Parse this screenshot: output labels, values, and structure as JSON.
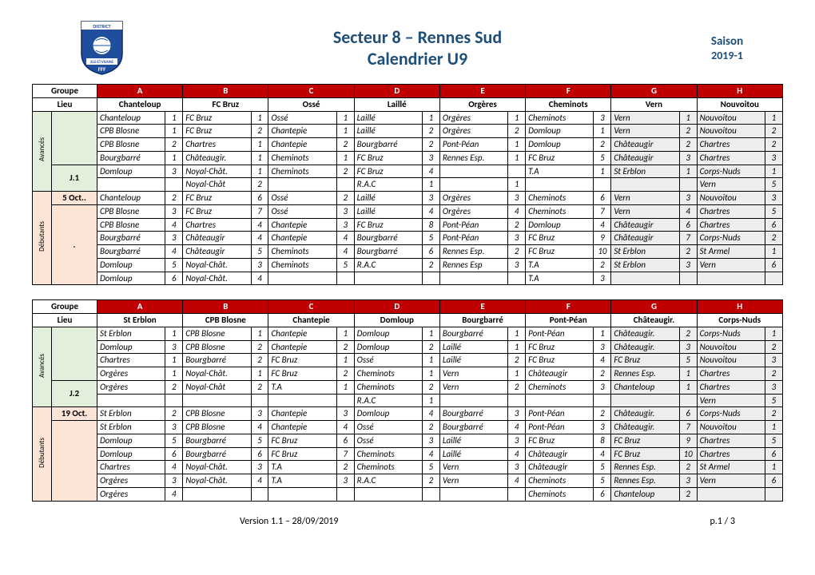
{
  "title1": "Secteur 8 – Rennes Sud",
  "title2": "Calendrier U9",
  "season1": "Saison",
  "season2": "2019-1",
  "groupeLabel": "Groupe",
  "lieuLabel": "Lieu",
  "groups": [
    "A",
    "B",
    "C",
    "D",
    "E",
    "F",
    "G",
    "H"
  ],
  "avancesLabel": "Avancés",
  "debutantsLabel": "Débutants",
  "block1": {
    "lieux": [
      "Chanteloup",
      "FC Bruz",
      "Ossé",
      "Laillé",
      "Orgères",
      "Cheminots",
      "Vern",
      "Nouvoitou"
    ],
    "j": "J.1",
    "date": "5 Oct..",
    "dateSub": ".",
    "adv": [
      [
        [
          "Chanteloup",
          "1"
        ],
        [
          "FC Bruz",
          "1"
        ],
        [
          "Ossé",
          "1"
        ],
        [
          "Laillé",
          "1"
        ],
        [
          "Orgères",
          "1"
        ],
        [
          "Cheminots",
          "3"
        ],
        [
          "Vern",
          "1"
        ],
        [
          "Nouvoitou",
          "1"
        ]
      ],
      [
        [
          "CPB Blosne",
          "1"
        ],
        [
          "FC Bruz",
          "2"
        ],
        [
          "Chantepie",
          "1"
        ],
        [
          "Laillé",
          "2"
        ],
        [
          "Orgères",
          "2"
        ],
        [
          "Domloup",
          "1"
        ],
        [
          "Vern",
          "2"
        ],
        [
          "Nouvoitou",
          "2"
        ]
      ],
      [
        [
          "CPB Blosne",
          "2"
        ],
        [
          "Chartres",
          "1"
        ],
        [
          "Chantepie",
          "2"
        ],
        [
          "Bourgbarré",
          "2"
        ],
        [
          "Pont-Péan",
          "1"
        ],
        [
          "Domloup",
          "2"
        ],
        [
          "Châteaugir",
          "2"
        ],
        [
          "Chartres",
          "2"
        ]
      ],
      [
        [
          "Bourgbarré",
          "1"
        ],
        [
          "Châteaugir.",
          "1"
        ],
        [
          "Cheminots",
          "1"
        ],
        [
          "FC Bruz",
          "3"
        ],
        [
          "Rennes Esp.",
          "1"
        ],
        [
          "FC Bruz",
          "5"
        ],
        [
          "Châteaugir",
          "3"
        ],
        [
          "Chartres",
          "3"
        ]
      ],
      [
        [
          "Domloup",
          "3"
        ],
        [
          "Noyal-Chât.",
          "1"
        ],
        [
          "Cheminots",
          "2"
        ],
        [
          "FC Bruz",
          "4"
        ],
        [
          "",
          ""
        ],
        [
          "T.A",
          "1"
        ],
        [
          "St Erblon",
          "1"
        ],
        [
          "Corps-Nuds",
          "1"
        ]
      ],
      [
        [
          "",
          ""
        ],
        [
          "Noyal-Chât",
          "2"
        ],
        [
          "",
          ""
        ],
        [
          "R.A.C",
          "1"
        ],
        [
          "",
          "1"
        ],
        [
          "",
          ""
        ],
        [
          "",
          ""
        ],
        [
          "Vern",
          "5"
        ]
      ]
    ],
    "deb": [
      [
        [
          "Chanteloup",
          "2"
        ],
        [
          "FC Bruz",
          "6"
        ],
        [
          "Ossé",
          "2"
        ],
        [
          "Laillé",
          "3"
        ],
        [
          "Orgères",
          "3"
        ],
        [
          "Cheminots",
          "6"
        ],
        [
          "Vern",
          "3"
        ],
        [
          "Nouvoitou",
          "3"
        ]
      ],
      [
        [
          "CPB Blosne",
          "3"
        ],
        [
          "FC Bruz",
          "7"
        ],
        [
          "Ossé",
          "3"
        ],
        [
          "Laillé",
          "4"
        ],
        [
          "Orgères",
          "4"
        ],
        [
          "Cheminots",
          "7"
        ],
        [
          "Vern",
          "4"
        ],
        [
          "Chartres",
          "5"
        ]
      ],
      [
        [
          "CPB Blosne",
          "4"
        ],
        [
          "Chartres",
          "4"
        ],
        [
          "Chantepie",
          "3"
        ],
        [
          "FC Bruz",
          "8"
        ],
        [
          "Pont-Péan",
          "2"
        ],
        [
          "Domloup",
          "4"
        ],
        [
          "Châteaugir",
          "6"
        ],
        [
          "Chartres",
          "6"
        ]
      ],
      [
        [
          "Bourgbarré",
          "3"
        ],
        [
          "Châteaugir",
          "4"
        ],
        [
          "Chantepie",
          "4"
        ],
        [
          "Bourgbarré",
          "5"
        ],
        [
          "Pont-Péan",
          "3"
        ],
        [
          "FC Bruz",
          "9"
        ],
        [
          "Châteaugir",
          "7"
        ],
        [
          "Corps-Nuds",
          "2"
        ]
      ],
      [
        [
          "Bourgbarré",
          "4"
        ],
        [
          "Châteaugir",
          "5"
        ],
        [
          "Cheminots",
          "4"
        ],
        [
          "Bourgbarré",
          "6"
        ],
        [
          "Rennes Esp.",
          "2"
        ],
        [
          "FC Bruz",
          "10"
        ],
        [
          "St Erblon",
          "2"
        ],
        [
          "St Armel",
          "1"
        ]
      ],
      [
        [
          "Domloup",
          "5"
        ],
        [
          "Noyal-Chât.",
          "3"
        ],
        [
          "Cheminots",
          "5"
        ],
        [
          "R.A.C",
          "2"
        ],
        [
          "Rennes Esp",
          "3"
        ],
        [
          "T.A",
          "2"
        ],
        [
          "St Erblon",
          "3"
        ],
        [
          "Vern",
          "6"
        ]
      ],
      [
        [
          "Domloup",
          "6"
        ],
        [
          "Noyal-Chât.",
          "4"
        ],
        [
          "",
          ""
        ],
        [
          "",
          ""
        ],
        [
          "",
          ""
        ],
        [
          "T.A",
          "3"
        ],
        [
          "",
          ""
        ],
        [
          "",
          ""
        ]
      ]
    ]
  },
  "block2": {
    "lieux": [
      "St Erblon",
      "CPB Blosne",
      "Chantepie",
      "Domloup",
      "Bourgbarré",
      "Pont-Péan",
      "Châteaugir.",
      "Corps-Nuds"
    ],
    "j": "J.2",
    "date": "19 Oct.",
    "adv": [
      [
        [
          "St Erblon",
          "1"
        ],
        [
          "CPB Blosne",
          "1"
        ],
        [
          "Chantepie",
          "1"
        ],
        [
          "Domloup",
          "1"
        ],
        [
          "Bourgbarré",
          "1"
        ],
        [
          "Pont-Péan",
          "1"
        ],
        [
          "Châteaugir.",
          "2"
        ],
        [
          "Corps-Nuds",
          "1"
        ]
      ],
      [
        [
          "Domloup",
          "3"
        ],
        [
          "CPB Blosne",
          "2"
        ],
        [
          "Chantepie",
          "2"
        ],
        [
          "Domloup",
          "2"
        ],
        [
          "Laillé",
          "1"
        ],
        [
          "FC Bruz",
          "3"
        ],
        [
          "Châteaugir.",
          "3"
        ],
        [
          "Nouvoitou",
          "2"
        ]
      ],
      [
        [
          "Chartres",
          "1"
        ],
        [
          "Bourgbarré",
          "2"
        ],
        [
          "FC Bruz",
          "1"
        ],
        [
          "Ossé",
          "1"
        ],
        [
          "Laillé",
          "2"
        ],
        [
          "FC Bruz",
          "4"
        ],
        [
          "FC Bruz",
          "5"
        ],
        [
          "Nouvoitou",
          "3"
        ]
      ],
      [
        [
          "Orgères",
          "1"
        ],
        [
          "Noyal-Chât.",
          "1"
        ],
        [
          "FC Bruz",
          "2"
        ],
        [
          "Cheminots",
          "1"
        ],
        [
          "Vern",
          "1"
        ],
        [
          "Châteaugir",
          "2"
        ],
        [
          "Rennes Esp.",
          "1"
        ],
        [
          "Chartres",
          "2"
        ]
      ],
      [
        [
          "Orgères",
          "2"
        ],
        [
          "Noyal-Chât",
          "2"
        ],
        [
          "T.A",
          "1"
        ],
        [
          "Cheminots",
          "2"
        ],
        [
          "Vern",
          "2"
        ],
        [
          "Cheminots",
          "3"
        ],
        [
          "Chanteloup",
          "1"
        ],
        [
          "Chartres",
          "3"
        ]
      ],
      [
        [
          "",
          ""
        ],
        [
          "",
          ""
        ],
        [
          "",
          ""
        ],
        [
          "R.A.C",
          "1"
        ],
        [
          "",
          ""
        ],
        [
          "",
          ""
        ],
        [
          "",
          ""
        ],
        [
          "Vern",
          "5"
        ]
      ]
    ],
    "deb": [
      [
        [
          "St Erblon",
          "2"
        ],
        [
          "CPB Blosne",
          "3"
        ],
        [
          "Chantepie",
          "3"
        ],
        [
          "Domloup",
          "4"
        ],
        [
          "Bourgbarré",
          "3"
        ],
        [
          "Pont-Péan",
          "2"
        ],
        [
          "Châteaugir.",
          "6"
        ],
        [
          "Corps-Nuds",
          "2"
        ]
      ],
      [
        [
          "St Erblon",
          "3"
        ],
        [
          "CPB Blosne",
          "4"
        ],
        [
          "Chantepie",
          "4"
        ],
        [
          "Ossé",
          "2"
        ],
        [
          "Bourgbarré",
          "4"
        ],
        [
          "Pont-Péan",
          "3"
        ],
        [
          "Châteaugir.",
          "7"
        ],
        [
          "Nouvoitou",
          "1"
        ]
      ],
      [
        [
          "Domloup",
          "5"
        ],
        [
          "Bourgbarré",
          "5"
        ],
        [
          "FC Bruz",
          "6"
        ],
        [
          "Ossé",
          "3"
        ],
        [
          "Laillé",
          "3"
        ],
        [
          "FC Bruz",
          "8"
        ],
        [
          "FC Bruz",
          "9"
        ],
        [
          "Chartres",
          "5"
        ]
      ],
      [
        [
          "Domloup",
          "6"
        ],
        [
          "Bourgbarré",
          "6"
        ],
        [
          "FC Bruz",
          "7"
        ],
        [
          "Cheminots",
          "4"
        ],
        [
          "Laillé",
          "4"
        ],
        [
          "Châteaugir",
          "4"
        ],
        [
          "FC Bruz",
          "10"
        ],
        [
          "Chartres",
          "6"
        ]
      ],
      [
        [
          "Chartres",
          "4"
        ],
        [
          "Noyal-Chât.",
          "3"
        ],
        [
          "T.A",
          "2"
        ],
        [
          "Cheminots",
          "5"
        ],
        [
          "Vern",
          "3"
        ],
        [
          "Châteaugir",
          "5"
        ],
        [
          "Rennes Esp.",
          "2"
        ],
        [
          "St Armel",
          "1"
        ]
      ],
      [
        [
          "Orgères",
          "3"
        ],
        [
          "Noyal-Chât.",
          "4"
        ],
        [
          "T.A",
          "3"
        ],
        [
          "R.A.C",
          "2"
        ],
        [
          "Vern",
          "4"
        ],
        [
          "Cheminots",
          "5"
        ],
        [
          "Rennes Esp.",
          "3"
        ],
        [
          "Vern",
          "6"
        ]
      ],
      [
        [
          "Orgères",
          "4"
        ],
        [
          "",
          ""
        ],
        [
          "",
          ""
        ],
        [
          "",
          ""
        ],
        [
          "",
          ""
        ],
        [
          "Cheminots",
          "6"
        ],
        [
          "Chanteloup",
          "2"
        ],
        [
          "",
          ""
        ]
      ]
    ]
  },
  "footerLeft": "Version 1.1 – 28/09/2019",
  "footerRight": "p.1 / 3",
  "grayCols": {
    "b1": [
      6,
      7
    ],
    "b2": [
      6,
      7
    ]
  }
}
